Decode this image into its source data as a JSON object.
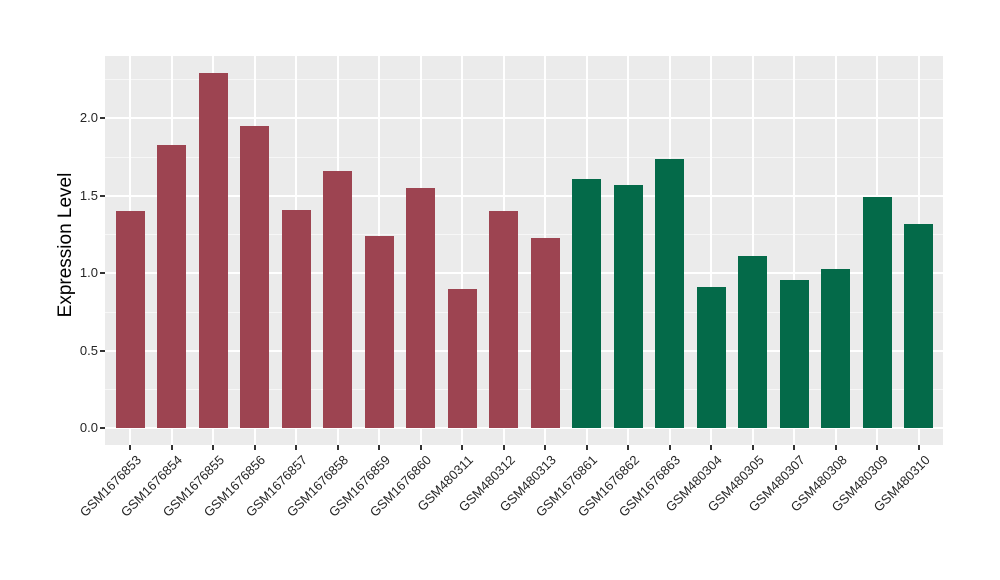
{
  "chart_data": {
    "type": "bar",
    "title": "",
    "xlabel": "",
    "ylabel": "Expression Level",
    "ylim": [
      0,
      2.4
    ],
    "yticks": [
      "0.0",
      "0.5",
      "1.0",
      "1.5",
      "2.0"
    ],
    "minor_yticks": [
      0.25,
      0.75,
      1.25,
      1.75,
      2.25
    ],
    "grid": "ggplot-style: gray panel, white major/minor horizontal gridlines, white vertical gridline at each bar center",
    "legend_position": "none",
    "categories": [
      "GSM1676853",
      "GSM1676854",
      "GSM1676855",
      "GSM1676856",
      "GSM1676857",
      "GSM1676858",
      "GSM1676859",
      "GSM1676860",
      "GSM480311",
      "GSM480312",
      "GSM480313",
      "GSM1676861",
      "GSM1676862",
      "GSM1676863",
      "GSM480304",
      "GSM480305",
      "GSM480307",
      "GSM480308",
      "GSM480309",
      "GSM480310"
    ],
    "values": [
      1.4,
      1.83,
      2.29,
      1.95,
      1.41,
      1.66,
      1.24,
      1.55,
      0.9,
      1.4,
      1.23,
      1.61,
      1.57,
      1.74,
      0.91,
      1.11,
      0.96,
      1.03,
      1.49,
      1.32
    ],
    "bar_groups": [
      "group1",
      "group1",
      "group1",
      "group1",
      "group1",
      "group1",
      "group1",
      "group1",
      "group1",
      "group1",
      "group1",
      "group2",
      "group2",
      "group2",
      "group2",
      "group2",
      "group2",
      "group2",
      "group2",
      "group2"
    ],
    "group_colors": {
      "group1": "#9D4451",
      "group2": "#046A49"
    }
  },
  "style": {
    "page_background": "#FFFFFF",
    "panel_background": "#EBEBEB",
    "gridline_color": "#FFFFFF",
    "tick_mark_color": "#333333",
    "tick_label_color": "#262626",
    "axis_title_color": "#000000"
  }
}
